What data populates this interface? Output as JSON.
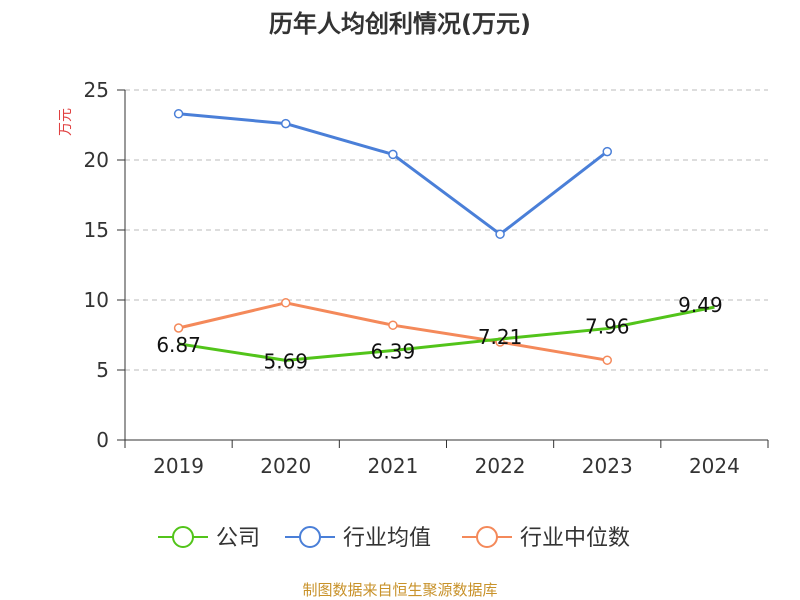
{
  "chart_data": {
    "type": "line",
    "title": "历年人均创利情况(万元)",
    "ylabel": "万元",
    "xlabel": "",
    "categories": [
      "2019",
      "2020",
      "2021",
      "2022",
      "2023",
      "2024"
    ],
    "ylim": [
      0,
      25
    ],
    "yticks": [
      0,
      5,
      10,
      15,
      20,
      25
    ],
    "grid": true,
    "legend_position": "bottom-center",
    "series": [
      {
        "name": "公司",
        "color": "#52c41a",
        "values": [
          6.87,
          5.69,
          6.39,
          7.21,
          7.96,
          9.49
        ],
        "labels": [
          "6.87",
          "5.69",
          "6.39",
          "7.21",
          "7.96",
          "9.49"
        ]
      },
      {
        "name": "行业均值",
        "color": "#4a7fd8",
        "values": [
          23.3,
          22.6,
          20.4,
          14.7,
          20.6,
          null
        ]
      },
      {
        "name": "行业中位数",
        "color": "#f4895a",
        "values": [
          8.0,
          9.8,
          8.2,
          7.0,
          5.7,
          null
        ]
      }
    ]
  },
  "source_text": "制图数据来自恒生聚源数据库",
  "colors": {
    "ylabel": "#e04040",
    "source": "#c8922a",
    "axis": "#333333",
    "grid": "#bbbbbb"
  }
}
